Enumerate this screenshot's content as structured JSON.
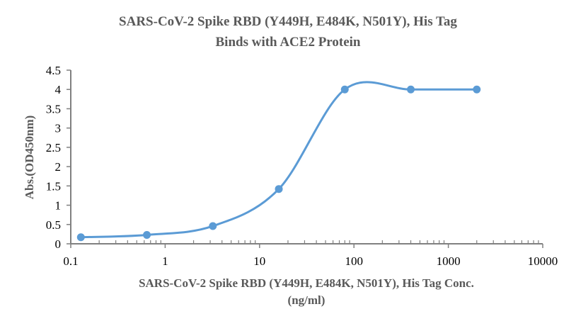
{
  "chart_data": {
    "type": "line",
    "title_lines": [
      "SARS-CoV-2 Spike RBD (Y449H, E484K, N501Y), His Tag",
      "Binds with ACE2 Protein"
    ],
    "xlabel_lines": [
      "SARS-CoV-2 Spike RBD (Y449H, E484K, N501Y), His Tag Conc.",
      "(ng/ml)"
    ],
    "ylabel": "Abs.(OD450nm)",
    "x_scale": "log",
    "xlim": [
      0.1,
      10000
    ],
    "ylim": [
      0,
      4.5
    ],
    "x_ticks": [
      "0.1",
      "1",
      "10",
      "100",
      "1000",
      "10000"
    ],
    "y_ticks": [
      "0",
      "0.5",
      "1",
      "1.5",
      "2",
      "2.5",
      "3",
      "3.5",
      "4",
      "4.5"
    ],
    "grid": false,
    "smoothed": true,
    "series_color": "#5B9BD5",
    "x": [
      0.128,
      0.64,
      3.2,
      16,
      80,
      400,
      2000
    ],
    "y": [
      0.17,
      0.23,
      0.46,
      1.42,
      4.0,
      4.0,
      4.0
    ]
  }
}
